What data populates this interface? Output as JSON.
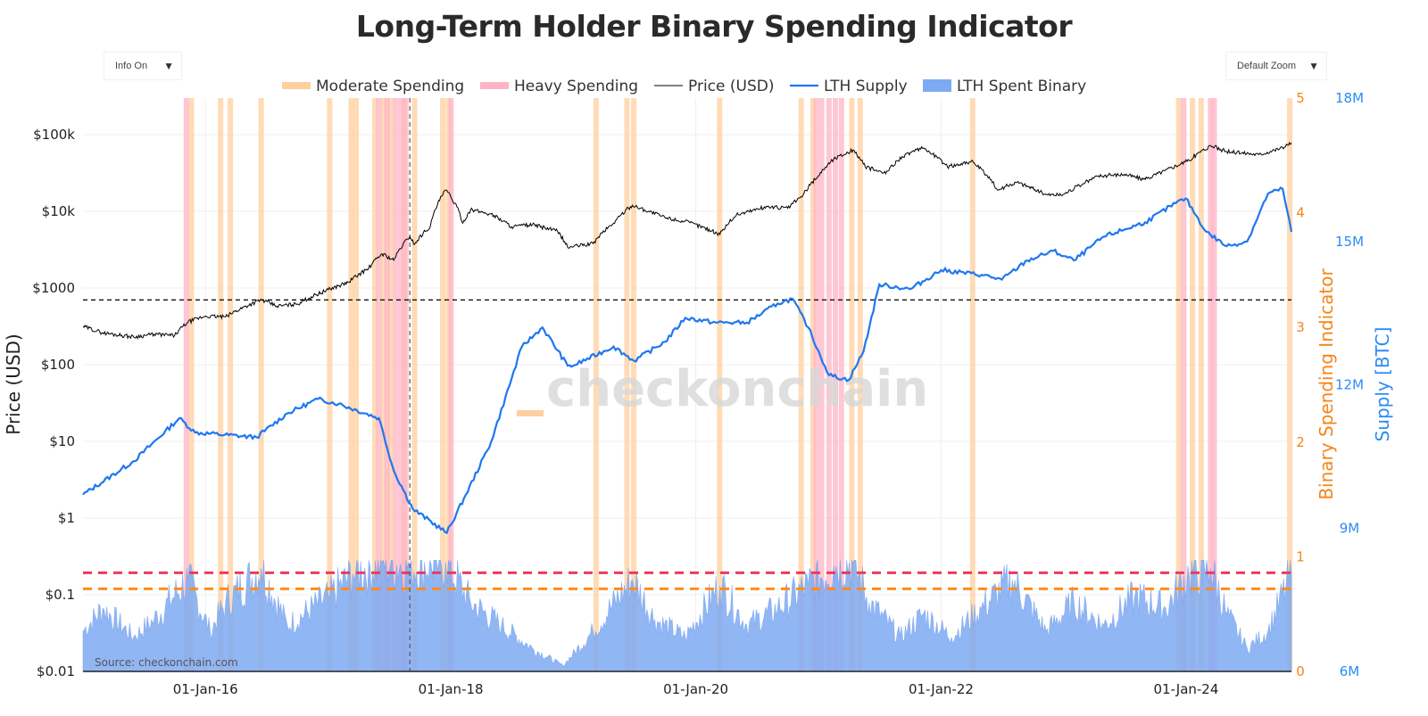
{
  "title": "Long-Term Holder Binary Spending Indicator",
  "controls": {
    "info_label": "Info On",
    "zoom_label": "Default Zoom"
  },
  "watermark": "checkonchain",
  "source": "Source: checkonchain.com",
  "colors": {
    "moderate": "#ffcf9e",
    "heavy": "#ffb3c4",
    "price": "#000000",
    "lth_supply": "#1f77f0",
    "lth_spent": "#7eaaf3",
    "heavy_threshold": "#ec3b5a",
    "moderate_threshold": "#ff8c1a",
    "indicator_axis": "#f58518",
    "supply_axis": "#2c8cf4"
  },
  "chart_data": {
    "type": "line",
    "title": "Long-Term Holder Binary Spending Indicator",
    "x_range": [
      "2015-01-01",
      "2024-11-10"
    ],
    "x_ticks": [
      "01-Jan-16",
      "01-Jan-18",
      "01-Jan-20",
      "01-Jan-22",
      "01-Jan-24"
    ],
    "axes": {
      "price": {
        "label": "Price (USD)",
        "scale": "log",
        "range": [
          0.01,
          300000
        ],
        "ticks": [
          "$0.01",
          "$0.1",
          "$1",
          "$10",
          "$100",
          "$1000",
          "$10k",
          "$100k"
        ]
      },
      "indicator": {
        "label": "Binary Spending Indicator",
        "range": [
          0,
          5
        ],
        "ticks": [
          "0",
          "1",
          "2",
          "3",
          "4",
          "5"
        ]
      },
      "supply": {
        "label": "Supply [BTC]",
        "range": [
          6000000,
          18000000
        ],
        "ticks": [
          "6M",
          "9M",
          "12M",
          "15M",
          "18M"
        ]
      }
    },
    "legend": [
      "Moderate Spending",
      "Heavy Spending",
      "Price (USD)",
      "LTH Supply",
      "LTH Spent Binary"
    ],
    "legend_position": "top-center",
    "grid": true,
    "reference_lines": [
      {
        "axis": "price",
        "value": 700,
        "style": "dashed",
        "color": "#000000"
      },
      {
        "axis": "indicator",
        "value": 0.86,
        "style": "dashed",
        "color": "#ec3b5a"
      },
      {
        "axis": "indicator",
        "value": 0.72,
        "style": "dashed",
        "color": "#ff8c1a"
      }
    ],
    "vertical_marker": "2017-09-01",
    "series": [
      {
        "name": "Price (USD)",
        "axis": "price",
        "x": [
          "2015-01-01",
          "2015-03-01",
          "2015-06-01",
          "2015-08-01",
          "2015-10-01",
          "2015-11-10",
          "2016-01-01",
          "2016-03-01",
          "2016-06-15",
          "2016-08-01",
          "2016-10-01",
          "2017-01-01",
          "2017-03-01",
          "2017-05-01",
          "2017-06-10",
          "2017-07-15",
          "2017-09-01",
          "2017-09-15",
          "2017-11-01",
          "2017-12-17",
          "2018-02-06",
          "2018-03-01",
          "2018-05-01",
          "2018-07-01",
          "2018-09-01",
          "2018-11-15",
          "2018-12-15",
          "2019-03-01",
          "2019-05-01",
          "2019-06-26",
          "2019-08-01",
          "2019-10-01",
          "2019-12-15",
          "2020-03-13",
          "2020-05-01",
          "2020-08-01",
          "2020-10-01",
          "2020-11-15",
          "2020-12-31",
          "2021-02-15",
          "2021-04-14",
          "2021-05-20",
          "2021-07-20",
          "2021-09-07",
          "2021-11-10",
          "2022-01-20",
          "2022-04-01",
          "2022-05-15",
          "2022-06-18",
          "2022-08-15",
          "2022-11-10",
          "2022-12-30",
          "2023-03-01",
          "2023-04-15",
          "2023-07-01",
          "2023-09-01",
          "2023-10-30",
          "2024-01-10",
          "2024-03-14",
          "2024-05-01",
          "2024-07-05",
          "2024-08-05",
          "2024-09-20",
          "2024-10-20",
          "2024-11-10"
        ],
        "values": [
          315,
          260,
          230,
          250,
          240,
          360,
          430,
          420,
          700,
          580,
          620,
          950,
          1180,
          1800,
          2800,
          2300,
          4700,
          3700,
          6400,
          19000,
          7000,
          10500,
          9200,
          6300,
          6700,
          5500,
          3400,
          3800,
          7000,
          12000,
          10500,
          8300,
          7100,
          5000,
          9000,
          11500,
          11000,
          16000,
          29000,
          48000,
          63000,
          38000,
          31000,
          52000,
          67000,
          38000,
          45000,
          30000,
          19000,
          24000,
          16500,
          16500,
          23000,
          29000,
          30500,
          26000,
          34000,
          46000,
          72000,
          60000,
          57000,
          55000,
          63000,
          69000,
          78000
        ]
      },
      {
        "name": "LTH Supply",
        "axis": "supply",
        "x": [
          "2015-01-01",
          "2015-06-01",
          "2015-10-15",
          "2015-12-01",
          "2016-06-01",
          "2016-09-01",
          "2016-12-01",
          "2017-02-01",
          "2017-06-01",
          "2017-07-15",
          "2017-09-10",
          "2017-12-20",
          "2018-02-15",
          "2018-05-01",
          "2018-08-01",
          "2018-10-01",
          "2018-12-15",
          "2019-01-01",
          "2019-05-01",
          "2019-07-01",
          "2019-10-01",
          "2019-12-01",
          "2020-03-01",
          "2020-06-01",
          "2020-09-01",
          "2020-10-15",
          "2020-12-01",
          "2021-02-01",
          "2021-04-01",
          "2021-05-15",
          "2021-07-01",
          "2021-10-01",
          "2022-01-01",
          "2022-05-01",
          "2022-07-01",
          "2022-09-15",
          "2022-12-01",
          "2023-02-01",
          "2023-05-01",
          "2023-09-01",
          "2023-12-01",
          "2023-12-31",
          "2024-03-01",
          "2024-05-01",
          "2024-07-01",
          "2024-09-01",
          "2024-10-15",
          "2024-11-10"
        ],
        "values": [
          9700,
          10400,
          11300,
          11000,
          10900,
          11400,
          11700,
          11600,
          11300,
          10200,
          9400,
          8900,
          9700,
          10800,
          12800,
          13200,
          12400,
          12400,
          12800,
          12500,
          12900,
          13400,
          13300,
          13300,
          13700,
          13800,
          13200,
          12200,
          12100,
          12700,
          14100,
          14000,
          14400,
          14300,
          14200,
          14600,
          14800,
          14600,
          15100,
          15400,
          15800,
          15900,
          15200,
          14900,
          15000,
          16000,
          16100,
          15200
        ]
      },
      {
        "name": "LTH Spent Binary",
        "axis": "indicator",
        "x": [
          "2015-01-01",
          "2015-03-01",
          "2015-06-01",
          "2015-08-01",
          "2015-11-10",
          "2016-01-15",
          "2016-03-01",
          "2016-06-15",
          "2016-09-01",
          "2017-01-05",
          "2017-03-15",
          "2017-06-10",
          "2017-09-01",
          "2017-12-17",
          "2018-03-01",
          "2018-06-01",
          "2018-09-01",
          "2018-12-01",
          "2019-03-01",
          "2019-06-26",
          "2019-09-01",
          "2019-12-01",
          "2020-03-13",
          "2020-06-01",
          "2020-09-01",
          "2020-12-01",
          "2021-02-15",
          "2021-04-14",
          "2021-06-01",
          "2021-09-01",
          "2021-11-10",
          "2022-02-01",
          "2022-05-01",
          "2022-08-01",
          "2022-11-10",
          "2023-02-01",
          "2023-05-01",
          "2023-08-01",
          "2023-11-01",
          "2024-01-10",
          "2024-03-14",
          "2024-05-01",
          "2024-07-01",
          "2024-09-01",
          "2024-11-10"
        ],
        "values": [
          0.35,
          0.55,
          0.3,
          0.45,
          0.8,
          0.35,
          0.6,
          0.9,
          0.4,
          0.65,
          0.85,
          0.95,
          0.92,
          0.95,
          0.6,
          0.4,
          0.2,
          0.05,
          0.35,
          0.8,
          0.45,
          0.3,
          0.75,
          0.4,
          0.55,
          0.75,
          0.92,
          0.95,
          0.6,
          0.3,
          0.5,
          0.3,
          0.55,
          0.8,
          0.35,
          0.6,
          0.4,
          0.65,
          0.55,
          0.85,
          0.9,
          0.5,
          0.2,
          0.35,
          0.85
        ]
      }
    ],
    "spending_bands": {
      "moderate": [
        "2015-11-20",
        "2016-02-15",
        "2016-03-15",
        "2016-06-15",
        "2017-01-05",
        "2017-03-10",
        "2017-03-25",
        "2017-05-20",
        "2017-06-15",
        "2017-07-05",
        "2017-08-15",
        "2017-09-15",
        "2017-12-08",
        "2017-12-25",
        "2019-03-10",
        "2019-06-10",
        "2019-06-30",
        "2020-03-12",
        "2020-11-10",
        "2020-12-15",
        "2021-04-10",
        "2021-05-05",
        "2022-04-05",
        "2023-12-10",
        "2024-01-20",
        "2024-02-15",
        "2024-11-05"
      ],
      "heavy": [
        "2015-11-05",
        "2017-06-01",
        "2017-06-25",
        "2017-07-20",
        "2017-08-05",
        "2017-08-20",
        "2018-01-02",
        "2020-12-25",
        "2021-01-10",
        "2021-02-01",
        "2021-02-20",
        "2021-03-10",
        "2023-12-25",
        "2024-03-14",
        "2024-03-25"
      ]
    }
  }
}
